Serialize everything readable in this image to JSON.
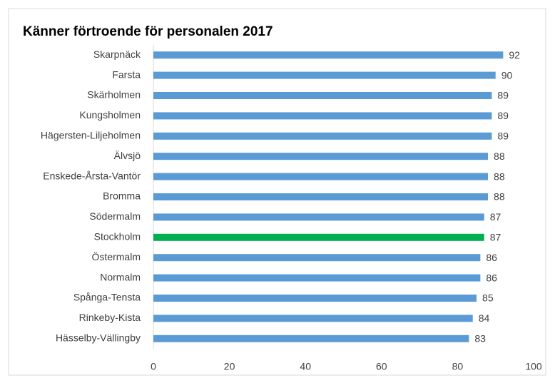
{
  "chart_data": {
    "type": "bar",
    "orientation": "horizontal",
    "title": "Känner förtroende för personalen 2017",
    "categories": [
      "Skarpnäck",
      "Farsta",
      "Skärholmen",
      "Kungsholmen",
      "Hägersten-Liljeholmen",
      "Älvsjö",
      "Enskede-Årsta-Vantör",
      "Bromma",
      "Södermalm",
      "Stockholm",
      "Östermalm",
      "Normalm",
      "Spånga-Tensta",
      "Rinkeby-Kista",
      "Hässelby-Vällingby"
    ],
    "values": [
      92,
      90,
      89,
      89,
      89,
      88,
      88,
      88,
      87,
      87,
      86,
      86,
      85,
      84,
      83
    ],
    "colors": [
      "#5b9bd5",
      "#5b9bd5",
      "#5b9bd5",
      "#5b9bd5",
      "#5b9bd5",
      "#5b9bd5",
      "#5b9bd5",
      "#5b9bd5",
      "#5b9bd5",
      "#00b050",
      "#5b9bd5",
      "#5b9bd5",
      "#5b9bd5",
      "#5b9bd5",
      "#5b9bd5"
    ],
    "xlim": [
      0,
      100
    ],
    "xticks": [
      0,
      20,
      40,
      60,
      80,
      100
    ],
    "grid": false
  }
}
